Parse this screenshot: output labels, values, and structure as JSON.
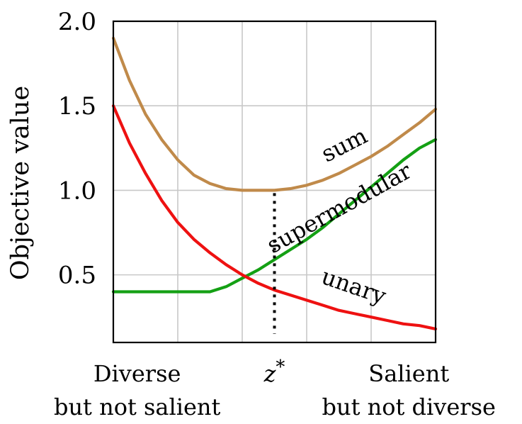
{
  "chart_data": {
    "type": "line",
    "xlim": [
      0,
      1
    ],
    "ylim": [
      0.1,
      2.0
    ],
    "grid": true,
    "ylabel": "Objective value",
    "yticks": [
      "2.0",
      "1.5",
      "1.0",
      "0.5"
    ],
    "ytick_values": [
      2.0,
      1.5,
      1.0,
      0.5
    ],
    "xgrid": [
      0.2,
      0.4,
      0.6,
      0.8
    ],
    "xticks": [
      {
        "x": 0.074,
        "lines": [
          "Diverse",
          "but not salient"
        ],
        "math": false
      },
      {
        "x": 0.5,
        "lines": [
          "z*"
        ],
        "math": true
      },
      {
        "x": 0.917,
        "lines": [
          "Salient",
          "but not diverse"
        ],
        "math": false
      }
    ],
    "marker": {
      "x": 0.5,
      "y_from": 0.1,
      "y_to": 1.0
    },
    "series": [
      {
        "name": "sum",
        "color": "#c08a4a",
        "x": [
          0,
          0.05,
          0.1,
          0.15,
          0.2,
          0.25,
          0.3,
          0.35,
          0.4,
          0.45,
          0.5,
          0.55,
          0.6,
          0.65,
          0.7,
          0.75,
          0.8,
          0.85,
          0.9,
          0.95,
          1.0
        ],
        "y": [
          1.9,
          1.65,
          1.45,
          1.3,
          1.18,
          1.09,
          1.04,
          1.01,
          1.0,
          1.0,
          1.0,
          1.01,
          1.03,
          1.06,
          1.1,
          1.15,
          1.2,
          1.26,
          1.33,
          1.4,
          1.48
        ]
      },
      {
        "name": "supermodular",
        "color": "#14a014",
        "x": [
          0,
          0.1,
          0.2,
          0.3,
          0.35,
          0.4,
          0.45,
          0.5,
          0.55,
          0.6,
          0.65,
          0.7,
          0.75,
          0.8,
          0.85,
          0.9,
          0.95,
          1.0
        ],
        "y": [
          0.4,
          0.4,
          0.4,
          0.4,
          0.43,
          0.48,
          0.53,
          0.59,
          0.65,
          0.71,
          0.78,
          0.86,
          0.94,
          1.02,
          1.1,
          1.18,
          1.25,
          1.3
        ]
      },
      {
        "name": "unary",
        "color": "#ee1111",
        "x": [
          0,
          0.05,
          0.1,
          0.15,
          0.2,
          0.25,
          0.3,
          0.35,
          0.4,
          0.45,
          0.5,
          0.55,
          0.6,
          0.65,
          0.7,
          0.75,
          0.8,
          0.85,
          0.9,
          0.95,
          1.0
        ],
        "y": [
          1.5,
          1.28,
          1.1,
          0.94,
          0.81,
          0.71,
          0.63,
          0.56,
          0.5,
          0.45,
          0.41,
          0.38,
          0.35,
          0.32,
          0.29,
          0.27,
          0.25,
          0.23,
          0.21,
          0.2,
          0.18
        ]
      }
    ],
    "series_labels": [
      {
        "name": "sum",
        "text": "sum"
      },
      {
        "name": "supermodular",
        "text": "supermodular"
      },
      {
        "name": "unary",
        "text": "unary"
      }
    ]
  }
}
